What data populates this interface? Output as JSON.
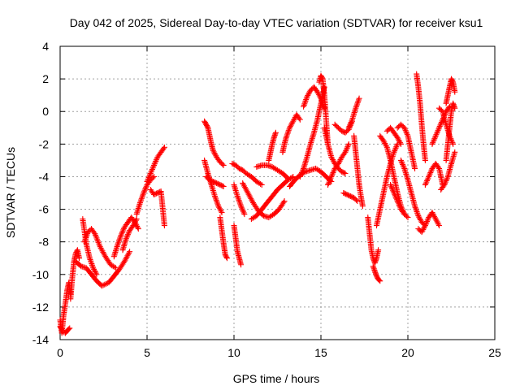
{
  "chart_data": {
    "type": "scatter",
    "title": "Day 042 of 2025, Sidereal Day-to-day VTEC variation (SDTVAR) for receiver ksu1",
    "xlabel": "GPS time / hours",
    "ylabel": "SDTVAR / TECUs",
    "xlim": [
      0,
      25
    ],
    "ylim": [
      -14,
      4
    ],
    "xticks": [
      0,
      5,
      10,
      15,
      20,
      25
    ],
    "yticks": [
      4,
      2,
      0,
      -2,
      -4,
      -6,
      -8,
      -10,
      -12,
      -14
    ],
    "xtick_labels": [
      "0",
      "5",
      "10",
      "15",
      "20",
      "25"
    ],
    "ytick_labels": [
      "4",
      "2",
      "0",
      "-2",
      "-4",
      "-6",
      "-8",
      "-10",
      "-12",
      "-14"
    ],
    "grid": true,
    "marker": "+",
    "color": "#ff0000",
    "series": [
      {
        "name": "t0",
        "x": [
          0.0,
          0.1,
          0.2,
          0.3,
          0.4,
          0.5,
          0.6
        ],
        "y": [
          -12.8,
          -13.6,
          -12.5,
          -11.8,
          -11.0,
          -10.5,
          -11.2
        ]
      },
      {
        "name": "t1",
        "x": [
          0.0,
          0.15,
          0.3,
          0.45,
          0.55
        ],
        "y": [
          -13.2,
          -13.5,
          -13.6,
          -13.4,
          -13.3
        ]
      },
      {
        "name": "t2",
        "x": [
          0.6,
          0.7,
          0.8,
          0.9,
          1.0,
          1.1
        ],
        "y": [
          -11.5,
          -10.2,
          -9.2,
          -8.7,
          -8.5,
          -9.0
        ]
      },
      {
        "name": "t3",
        "x": [
          0.9,
          1.2,
          1.5,
          1.8,
          2.1,
          2.4,
          2.8,
          3.1,
          3.4,
          3.7,
          4.0
        ],
        "y": [
          -9.2,
          -9.5,
          -9.6,
          -10.0,
          -10.4,
          -10.7,
          -10.5,
          -10.1,
          -9.7,
          -9.2,
          -8.6
        ]
      },
      {
        "name": "t4",
        "x": [
          1.4,
          1.6,
          1.8,
          2.0,
          2.3,
          2.6,
          2.9,
          3.2
        ],
        "y": [
          -8.0,
          -7.4,
          -7.2,
          -7.5,
          -8.3,
          -8.9,
          -9.4,
          -9.6
        ]
      },
      {
        "name": "t5",
        "x": [
          1.3,
          1.5,
          1.7,
          1.9,
          2.1
        ],
        "y": [
          -6.6,
          -8.1,
          -9.0,
          -9.6,
          -10.0
        ]
      },
      {
        "name": "t6",
        "x": [
          3.1,
          3.3,
          3.5,
          3.7,
          3.9,
          4.1,
          4.3,
          4.5
        ],
        "y": [
          -8.9,
          -8.2,
          -7.6,
          -7.1,
          -6.8,
          -6.5,
          -6.8,
          -7.2
        ]
      },
      {
        "name": "t7",
        "x": [
          3.6,
          3.8,
          4.0,
          4.2,
          4.4
        ],
        "y": [
          -8.5,
          -7.8,
          -7.3,
          -7.0,
          -6.6
        ]
      },
      {
        "name": "t8",
        "x": [
          4.4,
          4.6,
          4.8,
          5.0,
          5.2,
          5.4
        ],
        "y": [
          -6.3,
          -5.6,
          -5.0,
          -4.5,
          -4.2,
          -4.0
        ]
      },
      {
        "name": "t9",
        "x": [
          5.0,
          5.2,
          5.4,
          5.6,
          5.8,
          6.0
        ],
        "y": [
          -4.3,
          -3.8,
          -3.3,
          -2.8,
          -2.5,
          -2.2
        ]
      },
      {
        "name": "t10",
        "x": [
          5.2,
          5.4,
          5.6,
          5.8,
          6.0
        ],
        "y": [
          -4.8,
          -5.1,
          -5.0,
          -4.9,
          -7.0
        ]
      },
      {
        "name": "t11",
        "x": [
          8.3,
          8.4,
          8.5,
          8.6,
          8.7,
          8.8,
          9.0,
          9.2,
          9.4
        ],
        "y": [
          -0.6,
          -0.8,
          -1.0,
          -1.5,
          -2.0,
          -2.4,
          -2.8,
          -3.1,
          -3.3
        ]
      },
      {
        "name": "t12",
        "x": [
          8.3,
          8.5,
          8.7,
          8.9,
          9.1,
          9.3
        ],
        "y": [
          -3.0,
          -3.8,
          -4.5,
          -5.2,
          -5.8,
          -6.2
        ]
      },
      {
        "name": "t13",
        "x": [
          8.4,
          8.6,
          8.8,
          9.0,
          9.2,
          9.4
        ],
        "y": [
          -4.0,
          -4.2,
          -4.3,
          -4.4,
          -4.5,
          -4.6
        ]
      },
      {
        "name": "t14",
        "x": [
          9.2,
          9.3,
          9.4,
          9.5,
          9.6
        ],
        "y": [
          -6.5,
          -7.3,
          -8.1,
          -8.8,
          -9.0
        ]
      },
      {
        "name": "t15",
        "x": [
          9.9,
          10.1,
          10.3,
          10.5,
          10.7,
          11.0,
          11.3,
          11.6
        ],
        "y": [
          -3.2,
          -3.3,
          -3.5,
          -3.6,
          -3.8,
          -4.0,
          -4.3,
          -4.5
        ]
      },
      {
        "name": "t16",
        "x": [
          10.0,
          10.1,
          10.2,
          10.3,
          10.4
        ],
        "y": [
          -7.0,
          -7.8,
          -8.6,
          -9.0,
          -9.4
        ]
      },
      {
        "name": "t17",
        "x": [
          10.0,
          10.2,
          10.4,
          10.6
        ],
        "y": [
          -4.5,
          -5.2,
          -5.8,
          -6.3
        ]
      },
      {
        "name": "t18",
        "x": [
          10.5,
          10.8,
          11.1,
          11.4,
          11.7,
          12.0,
          12.3,
          12.6,
          12.9
        ],
        "y": [
          -4.4,
          -5.0,
          -5.6,
          -6.1,
          -6.4,
          -6.5,
          -6.3,
          -6.0,
          -5.5
        ]
      },
      {
        "name": "t19",
        "x": [
          11.0,
          11.3,
          11.6,
          11.9,
          12.2,
          12.5,
          12.8,
          13.1,
          13.4
        ],
        "y": [
          -6.6,
          -6.4,
          -6.0,
          -5.6,
          -5.2,
          -4.8,
          -4.5,
          -4.2,
          -4.0
        ]
      },
      {
        "name": "t20",
        "x": [
          11.3,
          11.6,
          11.9,
          12.2,
          12.5,
          12.8,
          13.1
        ],
        "y": [
          -3.4,
          -3.3,
          -3.3,
          -3.4,
          -3.6,
          -3.8,
          -4.1
        ]
      },
      {
        "name": "t21",
        "x": [
          12.0,
          12.1,
          12.2,
          12.3,
          12.4
        ],
        "y": [
          -3.0,
          -2.5,
          -2.0,
          -1.6,
          -1.3
        ]
      },
      {
        "name": "t22",
        "x": [
          12.8,
          12.9,
          13.0,
          13.2,
          13.4,
          13.6,
          13.8
        ],
        "y": [
          -2.5,
          -2.0,
          -1.6,
          -1.0,
          -0.6,
          -0.2,
          -0.5
        ]
      },
      {
        "name": "t23",
        "x": [
          13.2,
          13.5,
          13.8,
          14.1,
          14.4,
          14.7,
          15.0,
          15.3,
          15.6
        ],
        "y": [
          -4.6,
          -4.2,
          -3.9,
          -3.7,
          -3.6,
          -3.5,
          -3.7,
          -4.0,
          -4.3
        ]
      },
      {
        "name": "t24",
        "x": [
          13.8,
          14.0,
          14.2,
          14.4,
          14.6,
          14.8,
          15.0,
          15.2
        ],
        "y": [
          -4.0,
          -3.5,
          -2.8,
          -2.0,
          -1.3,
          -0.5,
          0.5,
          1.5
        ]
      },
      {
        "name": "t25",
        "x": [
          14.0,
          14.2,
          14.4,
          14.6,
          14.8,
          15.0,
          15.2
        ],
        "y": [
          0.3,
          0.9,
          1.3,
          1.5,
          1.2,
          0.8,
          0.2
        ]
      },
      {
        "name": "t26",
        "x": [
          14.9,
          15.0,
          15.1,
          15.2,
          15.3,
          15.4
        ],
        "y": [
          1.8,
          2.2,
          2.0,
          1.0,
          -0.5,
          -2.0
        ]
      },
      {
        "name": "t27",
        "x": [
          15.2,
          15.4,
          15.6,
          15.8,
          16.0,
          16.2,
          16.4
        ],
        "y": [
          -1.0,
          -2.0,
          -2.8,
          -3.2,
          -3.5,
          -3.7,
          -3.8
        ]
      },
      {
        "name": "t28",
        "x": [
          15.4,
          15.6,
          15.8,
          16.0,
          16.2,
          16.4,
          16.6
        ],
        "y": [
          -4.5,
          -4.0,
          -3.5,
          -3.2,
          -2.8,
          -2.5,
          -2.0
        ]
      },
      {
        "name": "t29",
        "x": [
          15.8,
          16.0,
          16.2,
          16.4,
          16.6,
          16.8
        ],
        "y": [
          -0.8,
          -1.0,
          -1.2,
          -1.3,
          -1.1,
          -0.6
        ]
      },
      {
        "name": "t30",
        "x": [
          16.3,
          16.5,
          16.7,
          16.9,
          17.1
        ],
        "y": [
          -5.0,
          -5.1,
          -5.2,
          -5.3,
          -5.5
        ]
      },
      {
        "name": "t31",
        "x": [
          16.6,
          16.8,
          17.0,
          17.2
        ],
        "y": [
          -1.0,
          -0.5,
          0.2,
          0.8
        ]
      },
      {
        "name": "t32",
        "x": [
          16.9,
          17.0,
          17.1,
          17.2,
          17.3,
          17.4
        ],
        "y": [
          -1.5,
          -2.5,
          -3.5,
          -4.5,
          -5.2,
          -5.8
        ]
      },
      {
        "name": "t33",
        "x": [
          17.7,
          17.8,
          17.9,
          18.0,
          18.1,
          18.2,
          18.3
        ],
        "y": [
          -6.5,
          -7.5,
          -8.5,
          -9.0,
          -9.3,
          -9.0,
          -8.5
        ]
      },
      {
        "name": "t34",
        "x": [
          18.0,
          18.1,
          18.2,
          18.3,
          18.4
        ],
        "y": [
          -9.5,
          -9.8,
          -10.1,
          -10.3,
          -10.4
        ]
      },
      {
        "name": "t35",
        "x": [
          18.2,
          18.4,
          18.6,
          18.8,
          19.0,
          19.2,
          19.4
        ],
        "y": [
          -7.0,
          -6.0,
          -5.0,
          -4.0,
          -3.2,
          -2.5,
          -2.0
        ]
      },
      {
        "name": "t36",
        "x": [
          18.4,
          18.6,
          18.8,
          19.0,
          19.2,
          19.4,
          19.6,
          19.8
        ],
        "y": [
          -1.5,
          -1.8,
          -2.2,
          -3.0,
          -4.0,
          -5.0,
          -5.8,
          -6.3
        ]
      },
      {
        "name": "t37",
        "x": [
          18.8,
          19.0,
          19.2,
          19.4,
          19.6
        ],
        "y": [
          -1.2,
          -1.0,
          -1.3,
          -1.6,
          -2.0
        ]
      },
      {
        "name": "t38",
        "x": [
          19.0,
          19.2,
          19.4,
          19.6,
          19.8,
          20.0
        ],
        "y": [
          -4.5,
          -5.0,
          -5.5,
          -6.0,
          -6.3,
          -6.5
        ]
      },
      {
        "name": "t39",
        "x": [
          19.4,
          19.6,
          19.8,
          20.0,
          20.2,
          20.4
        ],
        "y": [
          -1.0,
          -0.8,
          -1.0,
          -1.5,
          -2.5,
          -3.5
        ]
      },
      {
        "name": "t40",
        "x": [
          19.6,
          19.8,
          20.0,
          20.2,
          20.4,
          20.6,
          20.8,
          21.0
        ],
        "y": [
          -3.0,
          -3.5,
          -4.2,
          -5.0,
          -5.8,
          -6.4,
          -6.8,
          -7.0
        ]
      },
      {
        "name": "t41",
        "x": [
          20.5,
          20.6,
          20.7,
          20.8,
          20.9,
          21.0
        ],
        "y": [
          2.3,
          1.5,
          0.5,
          -0.8,
          -2.0,
          -3.0
        ]
      },
      {
        "name": "t42",
        "x": [
          20.6,
          20.8,
          21.0,
          21.2,
          21.4,
          21.6,
          21.8
        ],
        "y": [
          -7.2,
          -7.4,
          -7.0,
          -6.5,
          -6.2,
          -6.6,
          -7.0
        ]
      },
      {
        "name": "t43",
        "x": [
          21.0,
          21.2,
          21.4,
          21.6,
          21.8,
          22.0
        ],
        "y": [
          -4.5,
          -4.0,
          -3.5,
          -3.2,
          -3.5,
          -4.5
        ]
      },
      {
        "name": "t44",
        "x": [
          21.4,
          21.6,
          21.8,
          22.0,
          22.2,
          22.4
        ],
        "y": [
          -2.0,
          -1.5,
          -1.0,
          -0.5,
          0.0,
          0.3
        ]
      },
      {
        "name": "t45",
        "x": [
          21.8,
          22.0,
          22.2,
          22.4,
          22.6
        ],
        "y": [
          0.2,
          0.0,
          -0.8,
          -1.5,
          -2.0
        ]
      },
      {
        "name": "t46",
        "x": [
          22.2,
          22.3,
          22.4,
          22.5,
          22.6,
          22.7
        ],
        "y": [
          0.5,
          1.0,
          1.5,
          2.0,
          1.8,
          1.2
        ]
      },
      {
        "name": "t47",
        "x": [
          22.2,
          22.3,
          22.4,
          22.5,
          22.6,
          22.7
        ],
        "y": [
          -3.0,
          -2.0,
          -1.0,
          0.0,
          0.5,
          0.2
        ]
      },
      {
        "name": "t48",
        "x": [
          21.9,
          22.1,
          22.3,
          22.5,
          22.7
        ],
        "y": [
          -4.8,
          -4.5,
          -4.0,
          -3.2,
          -2.5
        ]
      }
    ]
  }
}
